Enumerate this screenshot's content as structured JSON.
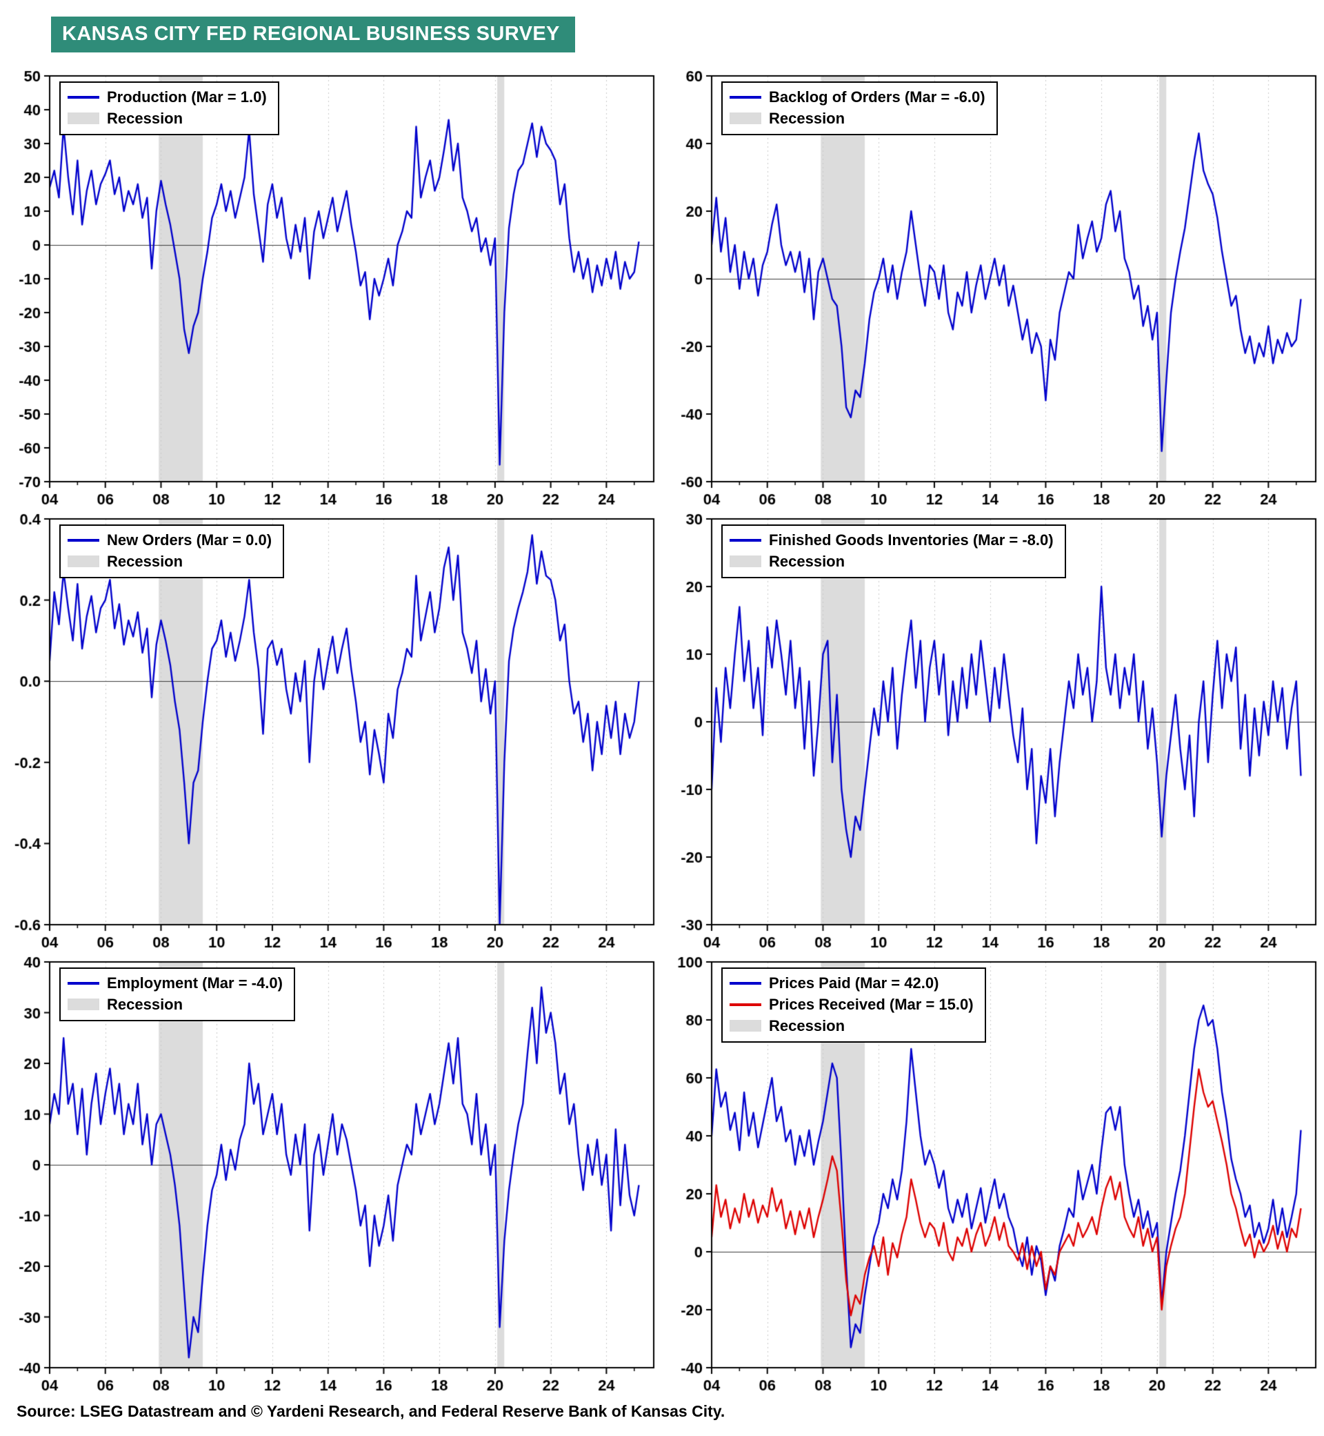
{
  "header": {
    "title": "KANSAS CITY FED REGIONAL BUSINESS SURVEY"
  },
  "source": {
    "text": "Source: LSEG Datastream and © Yardeni Research, and Federal Reserve Bank of Kansas City."
  },
  "colors": {
    "banner": "#2F8C79",
    "blue": "#0000CC",
    "red": "#DD0000",
    "recession": "#DCDCDC",
    "grid": "#C9C9C9",
    "zero": "#3A3A3A",
    "border": "#000000"
  },
  "axis": {
    "x_min": 2004,
    "x_max": 2025.7,
    "xticks": [
      2004,
      2006,
      2008,
      2010,
      2012,
      2014,
      2016,
      2018,
      2020,
      2022,
      2024
    ],
    "xtick_labels": [
      "04",
      "06",
      "08",
      "10",
      "12",
      "14",
      "16",
      "18",
      "20",
      "22",
      "24"
    ],
    "minor_xticks": [
      2005,
      2007,
      2009,
      2011,
      2013,
      2015,
      2017,
      2019,
      2021,
      2023,
      2025
    ],
    "recessions": [
      [
        2007.92,
        2009.5
      ],
      [
        2020.08,
        2020.33
      ]
    ]
  },
  "chart_data": [
    {
      "type": "line",
      "name": "Production",
      "legend": [
        {
          "type": "line",
          "color": "#0000CC",
          "label": "Production (Mar = 1.0)"
        },
        {
          "type": "patch",
          "color": "#DCDCDC",
          "label": "Recession"
        }
      ],
      "ylim": [
        -70,
        50
      ],
      "ytick_step": 10,
      "y_decimals": 0,
      "series": [
        {
          "name": "Production",
          "color": "#0000CC",
          "x_start": 2004,
          "x_step": 0.1666667,
          "values": [
            17,
            22,
            14,
            35,
            20,
            9,
            25,
            6,
            16,
            22,
            12,
            18,
            21,
            25,
            15,
            20,
            10,
            16,
            12,
            18,
            8,
            14,
            -7,
            10,
            19,
            12,
            6,
            -2,
            -10,
            -25,
            -32,
            -24,
            -20,
            -10,
            -2,
            8,
            12,
            18,
            10,
            16,
            8,
            14,
            20,
            34,
            15,
            5,
            -5,
            12,
            18,
            8,
            14,
            2,
            -4,
            6,
            -2,
            8,
            -10,
            4,
            10,
            2,
            8,
            14,
            4,
            10,
            16,
            6,
            -2,
            -12,
            -8,
            -22,
            -10,
            -15,
            -10,
            -4,
            -12,
            0,
            4,
            10,
            8,
            35,
            14,
            20,
            25,
            16,
            20,
            28,
            37,
            22,
            30,
            14,
            10,
            4,
            8,
            -2,
            2,
            -6,
            2,
            -65,
            -20,
            5,
            15,
            22,
            24,
            30,
            36,
            26,
            35,
            30,
            28,
            25,
            12,
            18,
            2,
            -8,
            -2,
            -10,
            -4,
            -14,
            -6,
            -12,
            -4,
            -10,
            -2,
            -13,
            -5,
            -10,
            -8,
            1
          ]
        }
      ]
    },
    {
      "type": "line",
      "name": "Backlog of Orders",
      "legend": [
        {
          "type": "line",
          "color": "#0000CC",
          "label": "Backlog of Orders (Mar = -6.0)"
        },
        {
          "type": "patch",
          "color": "#DCDCDC",
          "label": "Recession"
        }
      ],
      "ylim": [
        -60,
        60
      ],
      "ytick_step": 20,
      "y_decimals": 0,
      "series": [
        {
          "name": "Backlog of Orders",
          "color": "#0000CC",
          "x_start": 2004,
          "x_step": 0.1666667,
          "values": [
            10,
            24,
            8,
            18,
            2,
            10,
            -3,
            8,
            0,
            6,
            -5,
            4,
            8,
            16,
            22,
            10,
            4,
            8,
            2,
            8,
            -4,
            6,
            -12,
            2,
            6,
            0,
            -6,
            -8,
            -20,
            -38,
            -41,
            -33,
            -35,
            -25,
            -12,
            -4,
            0,
            6,
            -4,
            4,
            -6,
            2,
            8,
            20,
            10,
            0,
            -8,
            4,
            2,
            -6,
            4,
            -10,
            -15,
            -4,
            -8,
            2,
            -10,
            -2,
            4,
            -6,
            0,
            6,
            -2,
            4,
            -8,
            -2,
            -10,
            -18,
            -12,
            -22,
            -16,
            -20,
            -36,
            -18,
            -24,
            -10,
            -4,
            2,
            0,
            16,
            6,
            12,
            17,
            8,
            12,
            22,
            26,
            14,
            20,
            6,
            2,
            -6,
            -2,
            -14,
            -8,
            -18,
            -10,
            -51,
            -30,
            -10,
            0,
            8,
            15,
            25,
            35,
            43,
            32,
            28,
            25,
            18,
            8,
            0,
            -8,
            -5,
            -15,
            -22,
            -17,
            -25,
            -19,
            -23,
            -14,
            -25,
            -18,
            -22,
            -16,
            -20,
            -18,
            -6
          ]
        }
      ]
    },
    {
      "type": "line",
      "name": "New Orders",
      "legend": [
        {
          "type": "line",
          "color": "#0000CC",
          "label": "New Orders (Mar = 0.0)"
        },
        {
          "type": "patch",
          "color": "#DCDCDC",
          "label": "Recession"
        }
      ],
      "ylim": [
        -0.6,
        0.4
      ],
      "ytick_step": 0.2,
      "y_decimals": 1,
      "series": [
        {
          "name": "New Orders",
          "color": "#0000CC",
          "x_start": 2004,
          "x_step": 0.1666667,
          "values": [
            0.05,
            0.22,
            0.14,
            0.27,
            0.18,
            0.1,
            0.24,
            0.08,
            0.16,
            0.21,
            0.12,
            0.18,
            0.2,
            0.25,
            0.13,
            0.19,
            0.09,
            0.15,
            0.11,
            0.17,
            0.07,
            0.13,
            -0.04,
            0.09,
            0.15,
            0.1,
            0.04,
            -0.05,
            -0.12,
            -0.25,
            -0.4,
            -0.25,
            -0.22,
            -0.1,
            0,
            0.08,
            0.1,
            0.15,
            0.06,
            0.12,
            0.05,
            0.1,
            0.16,
            0.25,
            0.12,
            0.03,
            -0.13,
            0.08,
            0.1,
            0.04,
            0.08,
            -0.02,
            -0.08,
            0.02,
            -0.05,
            0.05,
            -0.2,
            0,
            0.08,
            -0.02,
            0.05,
            0.11,
            0.02,
            0.08,
            0.13,
            0.03,
            -0.05,
            -0.15,
            -0.1,
            -0.23,
            -0.12,
            -0.18,
            -0.25,
            -0.08,
            -0.14,
            -0.02,
            0.02,
            0.08,
            0.06,
            0.26,
            0.1,
            0.16,
            0.22,
            0.12,
            0.18,
            0.28,
            0.33,
            0.2,
            0.31,
            0.12,
            0.08,
            0.02,
            0.1,
            -0.05,
            0.03,
            -0.08,
            0,
            -0.6,
            -0.2,
            0.05,
            0.13,
            0.18,
            0.22,
            0.27,
            0.36,
            0.24,
            0.32,
            0.26,
            0.25,
            0.2,
            0.1,
            0.14,
            0,
            -0.08,
            -0.05,
            -0.15,
            -0.08,
            -0.22,
            -0.1,
            -0.18,
            -0.06,
            -0.14,
            -0.05,
            -0.18,
            -0.08,
            -0.14,
            -0.1,
            0
          ]
        }
      ]
    },
    {
      "type": "line",
      "name": "Finished Goods Inventories",
      "legend": [
        {
          "type": "line",
          "color": "#0000CC",
          "label": "Finished Goods Inventories (Mar = -8.0)"
        },
        {
          "type": "patch",
          "color": "#DCDCDC",
          "label": "Recession"
        }
      ],
      "ylim": [
        -30,
        30
      ],
      "ytick_step": 10,
      "y_decimals": 0,
      "series": [
        {
          "name": "Finished Goods Inventories",
          "color": "#0000CC",
          "x_start": 2004,
          "x_step": 0.1666667,
          "values": [
            -10,
            5,
            -3,
            8,
            2,
            10,
            17,
            6,
            12,
            2,
            8,
            -2,
            14,
            8,
            15,
            10,
            4,
            12,
            2,
            8,
            -4,
            6,
            -8,
            0,
            10,
            12,
            -6,
            4,
            -10,
            -16,
            -20,
            -14,
            -16,
            -10,
            -4,
            2,
            -2,
            6,
            0,
            8,
            -4,
            4,
            10,
            15,
            5,
            12,
            0,
            8,
            12,
            4,
            10,
            -2,
            6,
            0,
            8,
            2,
            10,
            4,
            12,
            6,
            0,
            8,
            2,
            10,
            4,
            -2,
            -6,
            2,
            -10,
            -4,
            -18,
            -8,
            -12,
            -4,
            -14,
            -6,
            0,
            6,
            2,
            10,
            4,
            8,
            0,
            6,
            20,
            8,
            4,
            10,
            2,
            8,
            4,
            10,
            0,
            6,
            -4,
            2,
            -6,
            -17,
            -8,
            -2,
            4,
            -4,
            -10,
            -2,
            -14,
            0,
            6,
            -6,
            4,
            12,
            2,
            10,
            6,
            11,
            -4,
            4,
            -8,
            2,
            -5,
            3,
            -2,
            6,
            0,
            5,
            -4,
            2,
            6,
            -8
          ]
        }
      ]
    },
    {
      "type": "line",
      "name": "Employment",
      "legend": [
        {
          "type": "line",
          "color": "#0000CC",
          "label": "Employment (Mar = -4.0)"
        },
        {
          "type": "patch",
          "color": "#DCDCDC",
          "label": "Recession"
        }
      ],
      "ylim": [
        -40,
        40
      ],
      "ytick_step": 10,
      "y_decimals": 0,
      "series": [
        {
          "name": "Employment",
          "color": "#0000CC",
          "x_start": 2004,
          "x_step": 0.1666667,
          "values": [
            8,
            14,
            10,
            25,
            12,
            16,
            6,
            15,
            2,
            12,
            18,
            8,
            14,
            19,
            10,
            16,
            6,
            12,
            8,
            16,
            4,
            10,
            0,
            8,
            10,
            6,
            2,
            -4,
            -12,
            -25,
            -38,
            -30,
            -33,
            -22,
            -12,
            -5,
            -2,
            4,
            -3,
            3,
            -1,
            5,
            8,
            20,
            12,
            16,
            6,
            10,
            14,
            6,
            12,
            2,
            -2,
            6,
            0,
            8,
            -13,
            2,
            6,
            -2,
            4,
            10,
            2,
            8,
            5,
            0,
            -5,
            -12,
            -8,
            -20,
            -10,
            -16,
            -12,
            -6,
            -15,
            -4,
            0,
            4,
            2,
            12,
            6,
            10,
            14,
            8,
            12,
            18,
            24,
            16,
            25,
            12,
            10,
            4,
            14,
            2,
            8,
            -2,
            4,
            -32,
            -15,
            -5,
            2,
            8,
            12,
            22,
            31,
            20,
            35,
            26,
            30,
            24,
            14,
            18,
            8,
            12,
            2,
            -5,
            4,
            -2,
            5,
            -4,
            2,
            -13,
            7,
            -8,
            4,
            -6,
            -10,
            -4
          ]
        }
      ]
    },
    {
      "type": "line",
      "name": "Prices",
      "legend": [
        {
          "type": "line",
          "color": "#0000CC",
          "label": "Prices Paid (Mar = 42.0)"
        },
        {
          "type": "line",
          "color": "#DD0000",
          "label": "Prices Received (Mar = 15.0)"
        },
        {
          "type": "patch",
          "color": "#DCDCDC",
          "label": "Recession"
        }
      ],
      "ylim": [
        -40,
        100
      ],
      "ytick_step": 20,
      "y_decimals": 0,
      "series": [
        {
          "name": "Prices Paid",
          "color": "#0000CC",
          "x_start": 2004,
          "x_step": 0.1666667,
          "values": [
            40,
            63,
            50,
            55,
            42,
            48,
            35,
            55,
            40,
            48,
            36,
            44,
            52,
            60,
            45,
            50,
            38,
            42,
            30,
            40,
            33,
            42,
            30,
            38,
            45,
            55,
            65,
            60,
            30,
            -5,
            -33,
            -25,
            -28,
            -15,
            -5,
            5,
            10,
            20,
            15,
            25,
            18,
            28,
            45,
            70,
            55,
            40,
            30,
            35,
            30,
            22,
            28,
            15,
            10,
            18,
            12,
            20,
            8,
            15,
            22,
            10,
            18,
            25,
            15,
            20,
            12,
            8,
            0,
            -5,
            5,
            -8,
            2,
            -3,
            -15,
            -5,
            -10,
            2,
            8,
            15,
            12,
            28,
            18,
            24,
            30,
            20,
            35,
            48,
            50,
            42,
            50,
            30,
            20,
            12,
            18,
            8,
            14,
            5,
            10,
            -18,
            0,
            10,
            20,
            28,
            40,
            55,
            70,
            80,
            85,
            78,
            80,
            70,
            55,
            45,
            32,
            25,
            20,
            12,
            16,
            5,
            10,
            3,
            8,
            18,
            6,
            15,
            5,
            12,
            20,
            42
          ]
        },
        {
          "name": "Prices Received",
          "color": "#DD0000",
          "x_start": 2004,
          "x_step": 0.1666667,
          "values": [
            5,
            23,
            12,
            18,
            8,
            15,
            10,
            20,
            12,
            18,
            10,
            16,
            12,
            22,
            14,
            18,
            8,
            14,
            6,
            14,
            8,
            15,
            5,
            12,
            18,
            25,
            33,
            28,
            10,
            -10,
            -22,
            -15,
            -18,
            -8,
            -2,
            2,
            -5,
            5,
            -8,
            3,
            -2,
            6,
            12,
            25,
            18,
            10,
            5,
            10,
            8,
            2,
            10,
            0,
            -3,
            5,
            2,
            8,
            0,
            6,
            10,
            2,
            6,
            12,
            4,
            10,
            2,
            0,
            -3,
            3,
            -6,
            2,
            -5,
            0,
            -13,
            -5,
            -8,
            0,
            3,
            6,
            2,
            10,
            5,
            8,
            12,
            6,
            15,
            22,
            26,
            18,
            24,
            12,
            8,
            5,
            12,
            2,
            8,
            0,
            5,
            -20,
            -5,
            2,
            8,
            12,
            20,
            35,
            50,
            63,
            55,
            50,
            52,
            45,
            38,
            30,
            20,
            15,
            8,
            2,
            6,
            -2,
            4,
            0,
            3,
            9,
            1,
            7,
            0,
            8,
            5,
            15
          ]
        }
      ]
    }
  ]
}
